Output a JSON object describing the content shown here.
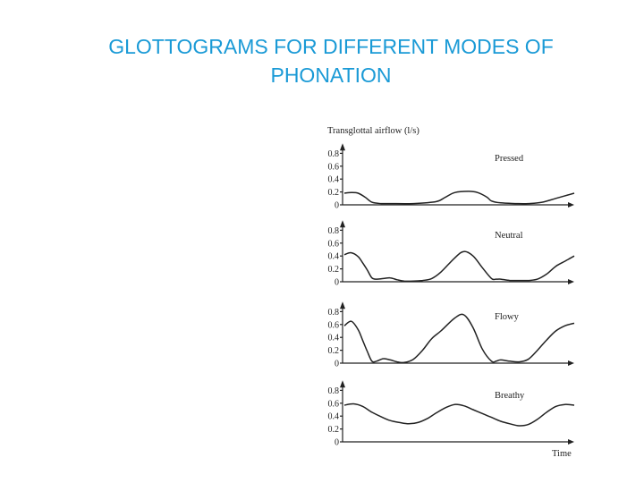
{
  "slide": {
    "title_line1": "GLOTTOGRAMS FOR DIFFERENT MODES OF",
    "title_line2": "PHONATION"
  },
  "chart_data": {
    "type": "line",
    "ylabel": "Transglottal airflow (l/s)",
    "xlabel": "Time",
    "yticks": [
      "0",
      "0.2",
      "0.4",
      "0.6",
      "0.8"
    ],
    "ylim": [
      0,
      0.9
    ],
    "xlim": [
      0,
      100
    ],
    "grid": false,
    "panels": [
      {
        "label": "Pressed",
        "x": [
          0,
          3,
          6,
          9,
          12,
          16,
          20,
          30,
          40,
          44,
          48,
          54,
          58,
          62,
          64,
          68,
          75,
          80,
          86,
          92,
          100
        ],
        "y": [
          0.18,
          0.19,
          0.18,
          0.12,
          0.04,
          0.02,
          0.02,
          0.02,
          0.05,
          0.12,
          0.19,
          0.21,
          0.19,
          0.12,
          0.06,
          0.03,
          0.02,
          0.02,
          0.04,
          0.1,
          0.18
        ]
      },
      {
        "label": "Neutral",
        "x": [
          0,
          3,
          6,
          8,
          10,
          12,
          14,
          17,
          20,
          23,
          26,
          30,
          34,
          38,
          42,
          48,
          52,
          56,
          60,
          64,
          66,
          68,
          72,
          76,
          80,
          84,
          88,
          92,
          96,
          100
        ],
        "y": [
          0.42,
          0.45,
          0.39,
          0.29,
          0.18,
          0.06,
          0.04,
          0.05,
          0.06,
          0.03,
          0.01,
          0.01,
          0.02,
          0.05,
          0.15,
          0.37,
          0.47,
          0.4,
          0.22,
          0.05,
          0.04,
          0.04,
          0.02,
          0.02,
          0.02,
          0.04,
          0.12,
          0.24,
          0.32,
          0.4
        ]
      },
      {
        "label": "Flowy",
        "x": [
          0,
          3,
          6,
          8,
          10,
          12,
          14,
          17,
          20,
          23,
          26,
          30,
          34,
          38,
          42,
          48,
          52,
          56,
          60,
          64,
          66,
          68,
          72,
          76,
          80,
          84,
          88,
          92,
          96,
          100
        ],
        "y": [
          0.58,
          0.65,
          0.52,
          0.35,
          0.18,
          0.03,
          0.03,
          0.07,
          0.05,
          0.02,
          0.01,
          0.06,
          0.2,
          0.38,
          0.5,
          0.7,
          0.75,
          0.55,
          0.22,
          0.03,
          0.03,
          0.05,
          0.03,
          0.02,
          0.06,
          0.2,
          0.36,
          0.5,
          0.58,
          0.62
        ]
      },
      {
        "label": "Breathy",
        "x": [
          0,
          4,
          8,
          12,
          16,
          20,
          24,
          28,
          32,
          36,
          40,
          44,
          48,
          52,
          56,
          60,
          64,
          68,
          72,
          76,
          80,
          84,
          88,
          92,
          96,
          100
        ],
        "y": [
          0.57,
          0.59,
          0.55,
          0.46,
          0.39,
          0.33,
          0.3,
          0.28,
          0.3,
          0.36,
          0.45,
          0.53,
          0.58,
          0.56,
          0.5,
          0.44,
          0.38,
          0.32,
          0.28,
          0.25,
          0.27,
          0.35,
          0.46,
          0.55,
          0.58,
          0.57
        ]
      }
    ]
  }
}
